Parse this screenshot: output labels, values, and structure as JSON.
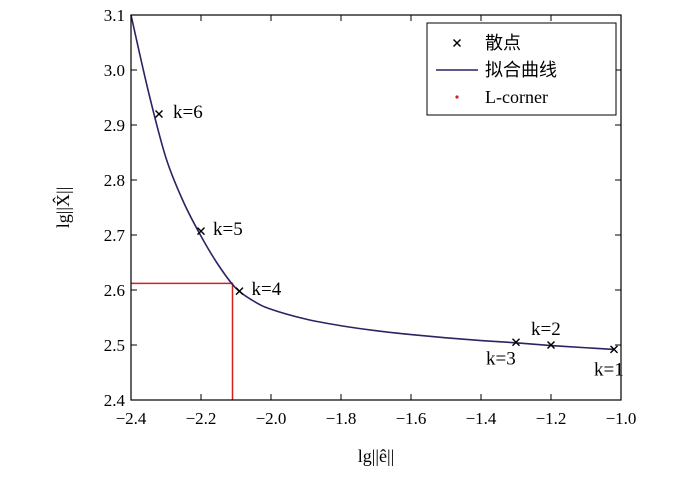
{
  "chart_data": {
    "type": "line",
    "xlabel": "lg||ê||",
    "ylabel": "lg||X̂||",
    "xlim": [
      -2.4,
      -1.0
    ],
    "ylim": [
      2.4,
      3.1
    ],
    "xticks": [
      -2.4,
      -2.2,
      -2.0,
      -1.8,
      -1.6,
      -1.4,
      -1.2,
      -1.0
    ],
    "yticks": [
      2.4,
      2.5,
      2.6,
      2.7,
      2.8,
      2.9,
      3.0,
      3.1
    ],
    "xtick_labels": [
      "−2.4",
      "−2.2",
      "−2.0",
      "−1.8",
      "−1.6",
      "−1.4",
      "−1.2",
      "−1.0"
    ],
    "ytick_labels": [
      "2.4",
      "2.5",
      "2.6",
      "2.7",
      "2.8",
      "2.9",
      "3.0",
      "3.1"
    ],
    "legend": {
      "position": "top-right",
      "entries": [
        {
          "label": "散点",
          "marker": "x",
          "color": "#000000"
        },
        {
          "label": "拟合曲线",
          "marker": "line",
          "color": "#2b2463"
        },
        {
          "label": "L-corner",
          "marker": "dot",
          "color": "#d42020"
        }
      ]
    },
    "series": [
      {
        "name": "散点",
        "kind": "scatter",
        "color": "#000000",
        "points": [
          {
            "x": -1.02,
            "y": 2.492,
            "label": "k=1"
          },
          {
            "x": -1.2,
            "y": 2.5,
            "label": "k=2"
          },
          {
            "x": -1.3,
            "y": 2.505,
            "label": "k=3"
          },
          {
            "x": -2.09,
            "y": 2.598,
            "label": "k=4"
          },
          {
            "x": -2.2,
            "y": 2.707,
            "label": "k=5"
          },
          {
            "x": -2.32,
            "y": 2.92,
            "label": "k=6"
          }
        ]
      },
      {
        "name": "拟合曲线",
        "kind": "line",
        "color": "#2b2463",
        "x": [
          -2.4,
          -2.35,
          -2.3,
          -2.25,
          -2.2,
          -2.15,
          -2.1,
          -2.05,
          -2.0,
          -1.9,
          -1.8,
          -1.7,
          -1.6,
          -1.5,
          -1.4,
          -1.3,
          -1.2,
          -1.1,
          -1.02
        ],
        "y": [
          3.1,
          2.96,
          2.84,
          2.76,
          2.698,
          2.645,
          2.603,
          2.58,
          2.565,
          2.547,
          2.535,
          2.526,
          2.519,
          2.513,
          2.508,
          2.504,
          2.499,
          2.495,
          2.492
        ]
      },
      {
        "name": "L-corner",
        "kind": "corner",
        "color": "#d42020",
        "x": -2.11,
        "y": 2.612
      }
    ]
  }
}
